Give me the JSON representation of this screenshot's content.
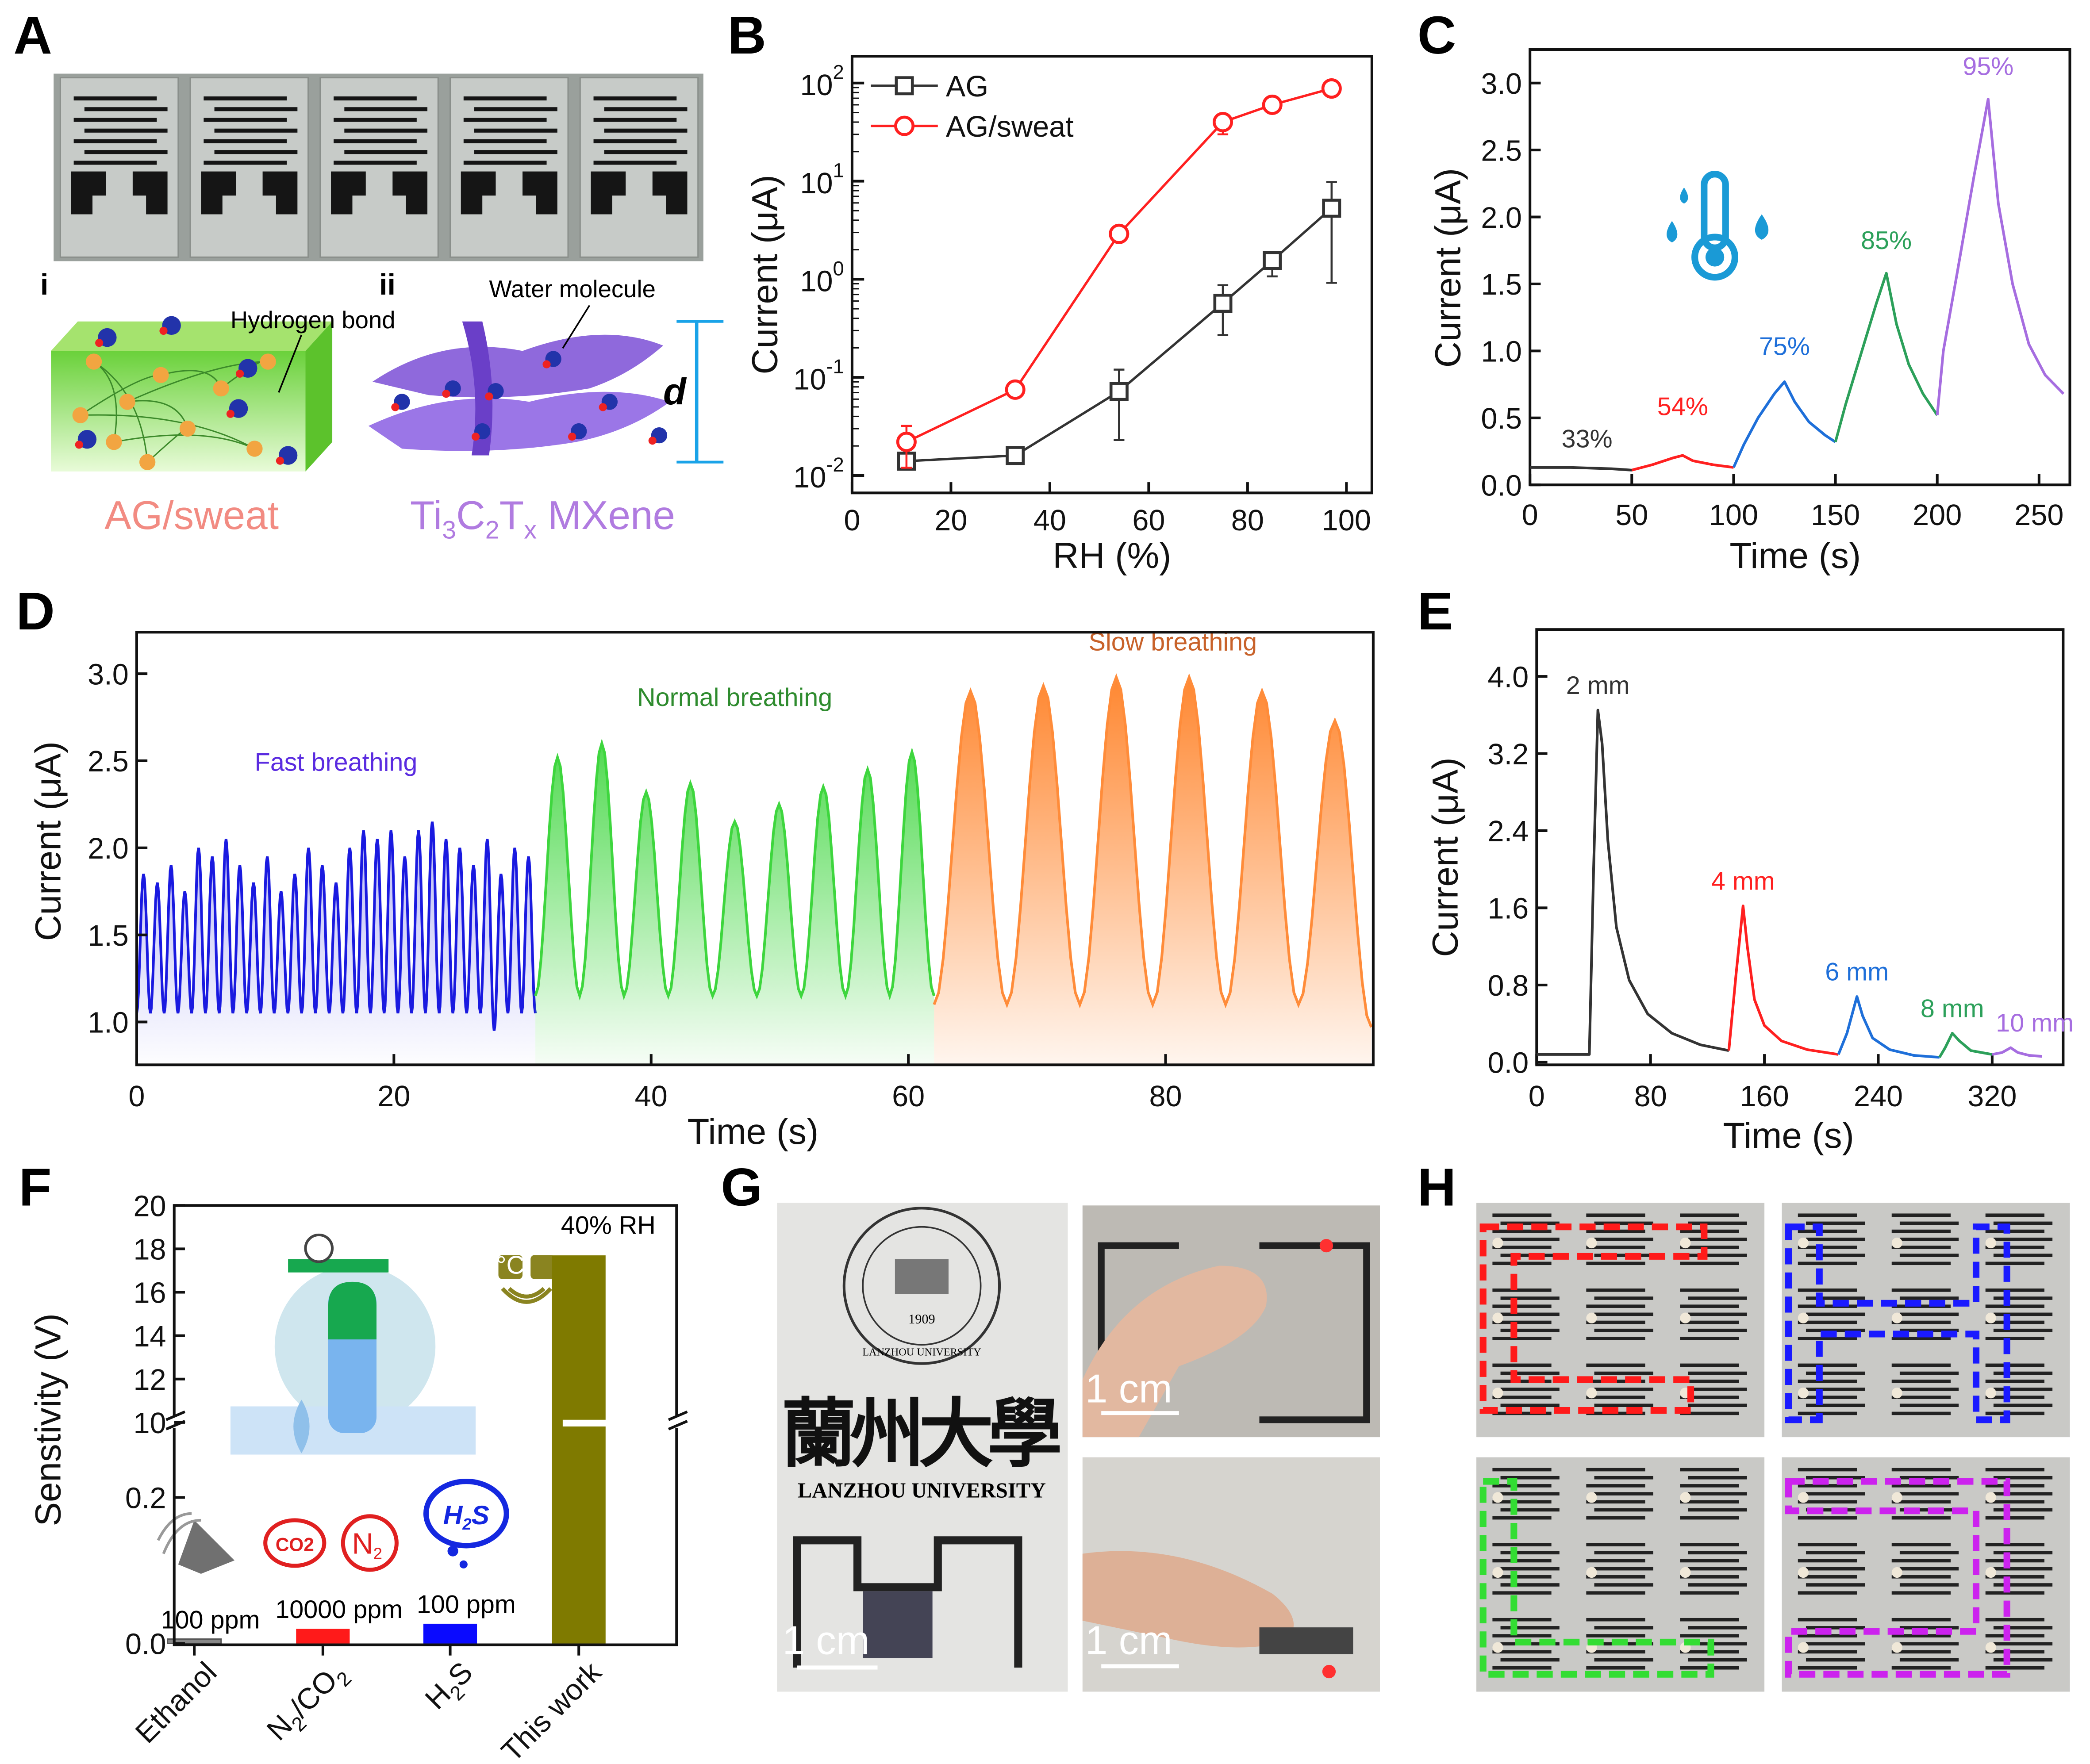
{
  "panels": {
    "A": "A",
    "B": "B",
    "C": "C",
    "D": "D",
    "E": "E",
    "F": "F",
    "G": "G",
    "H": "H"
  },
  "panel_a": {
    "sub_i": "i",
    "sub_ii": "ii",
    "hydrogen_bond": "Hydrogen  bond",
    "water_molecule": "Water molecule",
    "d_label": "d",
    "ag_sweat": "AG/sweat",
    "mxene": {
      "p1": "Ti",
      "s1": "3",
      "p2": "C",
      "s2": "2",
      "p3": "T",
      "s3": "x",
      "p4": " MXene"
    },
    "colors": {
      "ag_sweat": "#f28b82",
      "mxene": "#b07be0",
      "gel": "#7ed957"
    }
  },
  "chart_data": [
    {
      "panel": "B",
      "type": "line",
      "xlabel": "RH (%)",
      "ylabel": "Current (μA)",
      "xlim": [
        0,
        100
      ],
      "ylim": [
        0.01,
        200
      ],
      "yscale": "log",
      "xticks": [
        0,
        20,
        40,
        60,
        80,
        100
      ],
      "yticks_exp": [
        -2,
        -1,
        0,
        1,
        2
      ],
      "ytick_base": "10",
      "legend": "top-left",
      "series": [
        {
          "name": "AG",
          "color": "#333333",
          "marker": "square",
          "x": [
            11,
            33,
            54,
            75,
            85,
            97
          ],
          "y": [
            0.014,
            0.016,
            0.072,
            0.57,
            1.55,
            5.3
          ],
          "err_low": [
            0.013,
            0.014,
            0.023,
            0.27,
            1.07,
            0.92
          ],
          "err_high": [
            0.016,
            0.018,
            0.12,
            0.87,
            1.9,
            9.8
          ]
        },
        {
          "name": "AG/sweat",
          "color": "#ff2020",
          "marker": "circle",
          "x": [
            11,
            33,
            54,
            75,
            85,
            97
          ],
          "y": [
            0.022,
            0.075,
            2.9,
            40,
            60,
            88
          ],
          "err_low": [
            0.012,
            0.068,
            2.6,
            30,
            55,
            80
          ],
          "err_high": [
            0.032,
            0.082,
            3.2,
            48,
            66,
            96
          ]
        }
      ]
    },
    {
      "panel": "C",
      "type": "line",
      "xlabel": "Time (s)",
      "ylabel": "Current (μA)",
      "xlim": [
        0,
        262
      ],
      "ylim": [
        0,
        3.25
      ],
      "xticks": [
        0,
        50,
        100,
        150,
        200,
        250
      ],
      "yticks": [
        "0.0",
        "0.5",
        "1.0",
        "1.5",
        "2.0",
        "2.5",
        "3.0"
      ],
      "icon": "thermometer-humidity-icon",
      "series": [
        {
          "name": "33%",
          "color": "#333333",
          "points": [
            [
              0,
              0.13
            ],
            [
              20,
              0.13
            ],
            [
              40,
              0.12
            ],
            [
              50,
              0.11
            ]
          ]
        },
        {
          "name": "54%",
          "color": "#ff2020",
          "points": [
            [
              50,
              0.11
            ],
            [
              60,
              0.15
            ],
            [
              70,
              0.2
            ],
            [
              75,
              0.22
            ],
            [
              80,
              0.18
            ],
            [
              90,
              0.15
            ],
            [
              100,
              0.13
            ]
          ]
        },
        {
          "name": "75%",
          "color": "#1e6fd9",
          "points": [
            [
              100,
              0.13
            ],
            [
              105,
              0.3
            ],
            [
              112,
              0.5
            ],
            [
              120,
              0.68
            ],
            [
              125,
              0.77
            ],
            [
              130,
              0.62
            ],
            [
              137,
              0.47
            ],
            [
              145,
              0.37
            ],
            [
              150,
              0.32
            ]
          ]
        },
        {
          "name": "85%",
          "color": "#2ca05a",
          "points": [
            [
              150,
              0.32
            ],
            [
              155,
              0.6
            ],
            [
              162,
              0.95
            ],
            [
              170,
              1.35
            ],
            [
              175,
              1.58
            ],
            [
              180,
              1.2
            ],
            [
              186,
              0.9
            ],
            [
              193,
              0.68
            ],
            [
              200,
              0.52
            ]
          ]
        },
        {
          "name": "95%",
          "color": "#a66de0",
          "points": [
            [
              200,
              0.52
            ],
            [
              203,
              1.0
            ],
            [
              210,
              1.6
            ],
            [
              218,
              2.3
            ],
            [
              225,
              2.88
            ],
            [
              230,
              2.1
            ],
            [
              237,
              1.5
            ],
            [
              245,
              1.05
            ],
            [
              253,
              0.82
            ],
            [
              262,
              0.68
            ]
          ]
        }
      ]
    },
    {
      "panel": "D",
      "type": "area",
      "xlabel": "Time (s)",
      "ylabel": "Current (μA)",
      "xlim": [
        0,
        96
      ],
      "ylim": [
        0.75,
        3.25
      ],
      "xticks": [
        0,
        20,
        40,
        60,
        80
      ],
      "yticks": [
        "1.0",
        "1.5",
        "2.0",
        "2.5",
        "3.0"
      ],
      "series": [
        {
          "name": "Fast breathing",
          "color": "#1a1ae0",
          "label_color": "#5a2be0",
          "start": 0,
          "end": 31,
          "trough": 1.05,
          "peaks": [
            1.85,
            1.8,
            1.9,
            1.75,
            2.0,
            1.95,
            2.05,
            1.9,
            1.8,
            1.95,
            1.75,
            1.85,
            2.0,
            1.9,
            1.8,
            2.0,
            2.1,
            2.05,
            2.1,
            1.95,
            2.1,
            2.15,
            2.05,
            2.0,
            1.9,
            2.05,
            1.85,
            2.0,
            1.95
          ]
        },
        {
          "name": "Normal breathing",
          "color": "#3ed63e",
          "label_color": "#2e8b2e",
          "start": 31,
          "end": 62,
          "trough": 1.15,
          "peaks": [
            2.52,
            2.6,
            2.32,
            2.37,
            2.15,
            2.25,
            2.35,
            2.45,
            2.55
          ]
        },
        {
          "name": "Slow breathing",
          "color": "#ff8c3a",
          "label_color": "#c8622a",
          "start": 62,
          "end": 96,
          "trough": 1.1,
          "peaks": [
            2.9,
            2.93,
            2.98,
            2.98,
            2.9,
            2.73
          ]
        }
      ]
    },
    {
      "panel": "E",
      "type": "line",
      "xlabel": "Time (s)",
      "ylabel": "Current (μA)",
      "xlim": [
        0,
        370
      ],
      "ylim": [
        0,
        4.4
      ],
      "xticks": [
        0,
        80,
        160,
        240,
        320
      ],
      "yticks": [
        "0.0",
        "0.8",
        "1.6",
        "2.4",
        "3.2",
        "4.0"
      ],
      "series": [
        {
          "name": "2 mm",
          "color": "#333333",
          "points": [
            [
              0,
              0.08
            ],
            [
              37,
              0.08
            ],
            [
              40,
              2.0
            ],
            [
              43,
              3.65
            ],
            [
              46,
              3.3
            ],
            [
              50,
              2.3
            ],
            [
              56,
              1.4
            ],
            [
              65,
              0.85
            ],
            [
              78,
              0.5
            ],
            [
              95,
              0.3
            ],
            [
              115,
              0.18
            ],
            [
              135,
              0.12
            ]
          ]
        },
        {
          "name": "4 mm",
          "color": "#ff2020",
          "points": [
            [
              135,
              0.12
            ],
            [
              140,
              0.9
            ],
            [
              145,
              1.62
            ],
            [
              148,
              1.2
            ],
            [
              153,
              0.65
            ],
            [
              160,
              0.38
            ],
            [
              172,
              0.22
            ],
            [
              190,
              0.13
            ],
            [
              212,
              0.08
            ]
          ]
        },
        {
          "name": "6 mm",
          "color": "#1e6fd9",
          "points": [
            [
              212,
              0.08
            ],
            [
              218,
              0.3
            ],
            [
              225,
              0.68
            ],
            [
              229,
              0.48
            ],
            [
              236,
              0.25
            ],
            [
              248,
              0.13
            ],
            [
              265,
              0.07
            ],
            [
              283,
              0.05
            ]
          ]
        },
        {
          "name": "8 mm",
          "color": "#2ca05a",
          "points": [
            [
              283,
              0.05
            ],
            [
              287,
              0.15
            ],
            [
              292,
              0.3
            ],
            [
              297,
              0.22
            ],
            [
              305,
              0.12
            ],
            [
              320,
              0.08
            ]
          ]
        },
        {
          "name": "10 mm",
          "color": "#a66de0",
          "points": [
            [
              320,
              0.08
            ],
            [
              327,
              0.1
            ],
            [
              333,
              0.15
            ],
            [
              338,
              0.1
            ],
            [
              346,
              0.07
            ],
            [
              355,
              0.06
            ]
          ]
        }
      ]
    },
    {
      "panel": "F",
      "type": "bar",
      "ylabel": "Senstivity (V)",
      "ylim_lower": [
        0,
        0.29
      ],
      "ylim_upper": [
        10,
        20
      ],
      "axis_break": true,
      "yticks_upper": [
        "10",
        "12",
        "14",
        "16",
        "18",
        "20"
      ],
      "yticks_lower": [
        "0.0",
        "0.2"
      ],
      "categories": [
        {
          "text": "Ethanol",
          "parts": [
            {
              "t": "Ethanol",
              "sub": false
            }
          ]
        },
        {
          "text": "N2/CO2",
          "parts": [
            {
              "t": "N",
              "sub": false
            },
            {
              "t": "2",
              "sub": true
            },
            {
              "t": "/CO",
              "sub": false
            },
            {
              "t": "2",
              "sub": true
            }
          ]
        },
        {
          "text": "H2S",
          "parts": [
            {
              "t": "H",
              "sub": false
            },
            {
              "t": "2",
              "sub": true
            },
            {
              "t": "S",
              "sub": false
            }
          ]
        },
        {
          "text": "This work",
          "parts": [
            {
              "t": "This work",
              "sub": false
            }
          ]
        }
      ],
      "values": [
        0.006,
        0.02,
        0.027,
        17.7
      ],
      "bar_labels": [
        "100 ppm",
        "10000 ppm",
        "100 ppm",
        "40% RH"
      ],
      "colors": [
        "#888888",
        "#ff1a1a",
        "#0a0aff",
        "#7f7a00"
      ],
      "icons": {
        "co2": "CO2",
        "co2_sub": "2",
        "n2": "N",
        "n2_sub": "2",
        "h2s": "H",
        "h2s_sub": "2",
        "h2s_s": "S",
        "sensor_c": "°C"
      }
    }
  ],
  "panel_g": {
    "seal_year": "1909",
    "seal_text": "LANZHOU UNIVERSITY",
    "calligraphy": "蘭州大學",
    "university": "LANZHOU UNIVERSITY",
    "scale_1": "1 cm",
    "scale_2": "1 cm",
    "scale_3": "1 cm"
  },
  "panel_h": {
    "colors": [
      "#ff1a1a",
      "#1a1aff",
      "#33dd33",
      "#cc22ee"
    ]
  }
}
